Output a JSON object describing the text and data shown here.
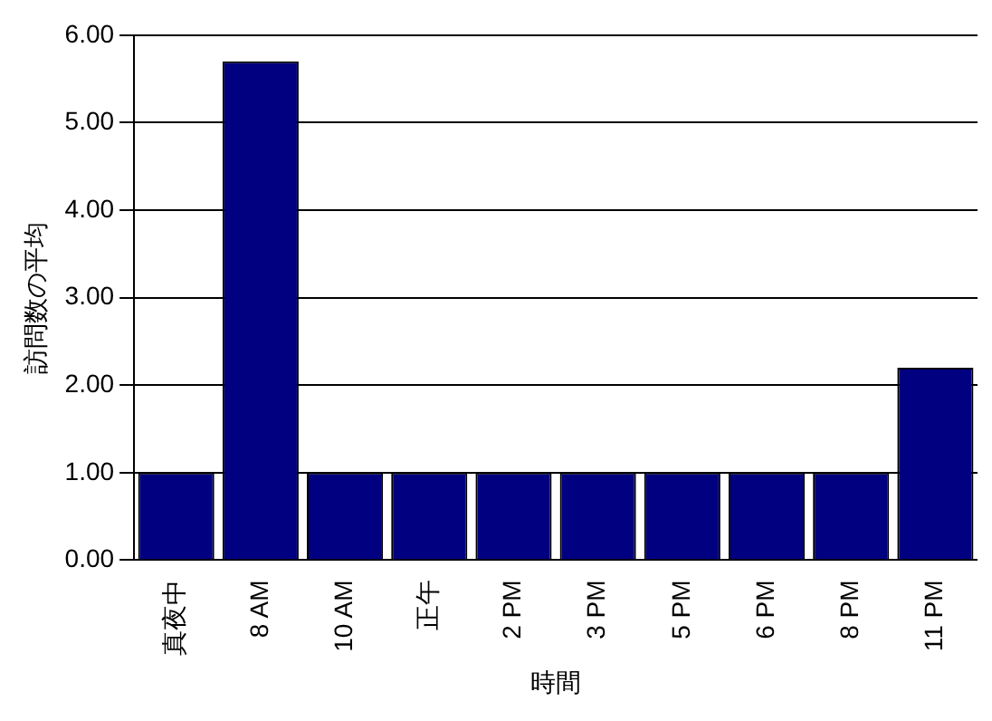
{
  "chart_data": {
    "type": "bar",
    "xlabel": "時間",
    "ylabel": "訪問数の平均",
    "categories": [
      "真夜中",
      "8 AM",
      "10 AM",
      "正午",
      "2 PM",
      "3 PM",
      "5 PM",
      "6 PM",
      "8 PM",
      "11 PM"
    ],
    "values": [
      1,
      5.7,
      1,
      1,
      1,
      1,
      1,
      1,
      1,
      2.2
    ],
    "color": "#000080",
    "ylim": [
      0,
      6
    ],
    "yticks": [
      {
        "value": 0,
        "label": "0.00"
      },
      {
        "value": 1,
        "label": "1.00"
      },
      {
        "value": 2,
        "label": "2.00"
      },
      {
        "value": 3,
        "label": "3.00"
      },
      {
        "value": 4,
        "label": "4.00"
      },
      {
        "value": 5,
        "label": "5.00"
      },
      {
        "value": 6,
        "label": "6.00"
      }
    ],
    "grid": "y"
  }
}
